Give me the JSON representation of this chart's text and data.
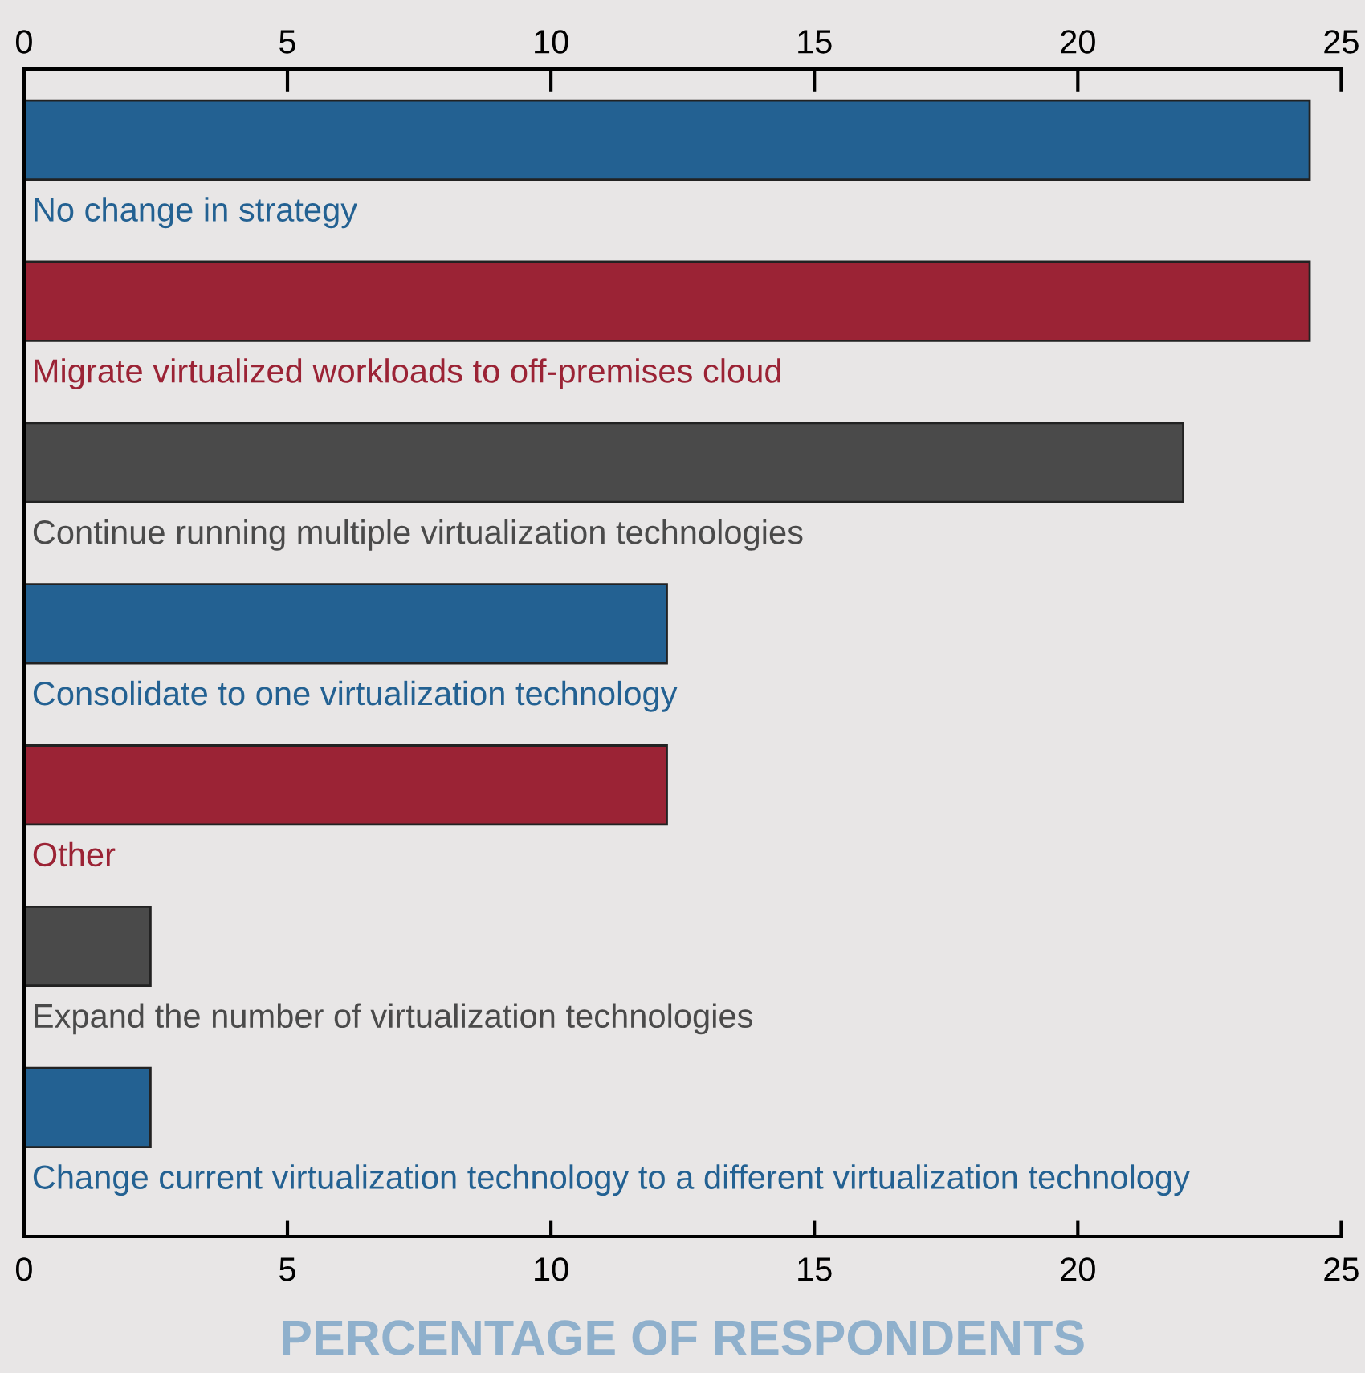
{
  "chart_data": {
    "type": "bar",
    "orientation": "horizontal",
    "xlabel": "PERCENTAGE OF RESPONDENTS",
    "categories": [
      "No change in strategy",
      "Migrate virtualized workloads to off-premises cloud",
      "Continue running multiple virtualization technologies",
      "Consolidate to one virtualization technology",
      "Other",
      "Expand the number of virtualization technologies",
      "Change current virtualization technology to a different virtualization technology"
    ],
    "values": [
      24.4,
      24.4,
      22,
      12.2,
      12.2,
      2.4,
      2.4
    ],
    "colors": [
      "#236192",
      "#9b2335",
      "#4a4a4a",
      "#236192",
      "#9b2335",
      "#4a4a4a",
      "#236192"
    ],
    "xlim": [
      0,
      25
    ],
    "xticks": [
      0,
      5,
      10,
      15,
      20,
      25
    ],
    "x2lim": [
      0,
      25
    ],
    "x2ticks": [
      0,
      5,
      10,
      15,
      20,
      25
    ],
    "grid": false
  }
}
